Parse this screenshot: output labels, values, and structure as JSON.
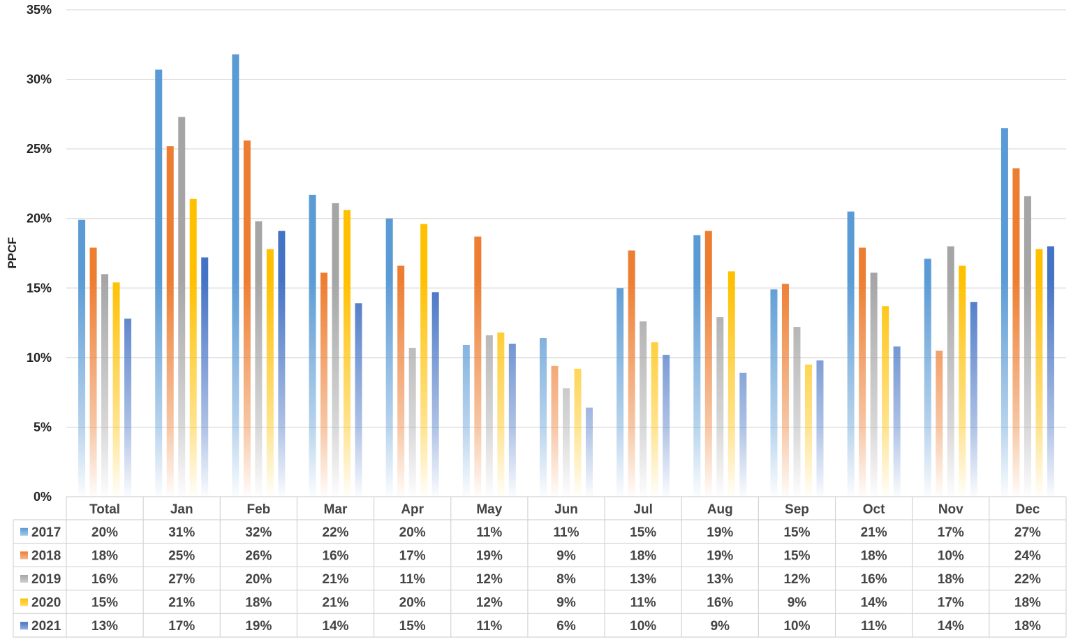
{
  "chart_data": {
    "type": "bar",
    "ylabel": "PPCF",
    "ylim": [
      0,
      35
    ],
    "y_ticks": [
      "0%",
      "5%",
      "10%",
      "15%",
      "20%",
      "25%",
      "30%",
      "35%"
    ],
    "y_tick_values": [
      0,
      5,
      10,
      15,
      20,
      25,
      30,
      35
    ],
    "grid": true,
    "legend_placement": "data-table",
    "categories": [
      "Total",
      "Jan",
      "Feb",
      "Mar",
      "Apr",
      "May",
      "Jun",
      "Jul",
      "Aug",
      "Sep",
      "Oct",
      "Nov",
      "Dec"
    ],
    "series": [
      {
        "name": "2017",
        "color": "#5b9bd5",
        "values": [
          19.9,
          30.7,
          31.8,
          21.7,
          20.0,
          10.9,
          11.4,
          15.0,
          18.8,
          14.9,
          20.5,
          17.1,
          26.5
        ],
        "labels": [
          "20%",
          "31%",
          "32%",
          "22%",
          "20%",
          "11%",
          "11%",
          "15%",
          "19%",
          "15%",
          "21%",
          "17%",
          "27%"
        ]
      },
      {
        "name": "2018",
        "color": "#ed7d31",
        "values": [
          17.9,
          25.2,
          25.6,
          16.1,
          16.6,
          18.7,
          9.4,
          17.7,
          19.1,
          15.3,
          17.9,
          10.5,
          23.6
        ],
        "labels": [
          "18%",
          "25%",
          "26%",
          "16%",
          "17%",
          "19%",
          "9%",
          "18%",
          "19%",
          "15%",
          "18%",
          "10%",
          "24%"
        ]
      },
      {
        "name": "2019",
        "color": "#a5a5a5",
        "values": [
          16.0,
          27.3,
          19.8,
          21.1,
          10.7,
          11.6,
          7.8,
          12.6,
          12.9,
          12.2,
          16.1,
          18.0,
          21.6
        ],
        "labels": [
          "16%",
          "27%",
          "20%",
          "21%",
          "11%",
          "12%",
          "8%",
          "13%",
          "13%",
          "12%",
          "16%",
          "18%",
          "22%"
        ]
      },
      {
        "name": "2020",
        "color": "#ffc000",
        "values": [
          15.4,
          21.4,
          17.8,
          20.6,
          19.6,
          11.8,
          9.2,
          11.1,
          16.2,
          9.5,
          13.7,
          16.6,
          17.8
        ],
        "labels": [
          "15%",
          "21%",
          "18%",
          "21%",
          "20%",
          "12%",
          "9%",
          "11%",
          "16%",
          "9%",
          "14%",
          "17%",
          "18%"
        ]
      },
      {
        "name": "2021",
        "color": "#4472c4",
        "values": [
          12.8,
          17.2,
          19.1,
          13.9,
          14.7,
          11.0,
          6.4,
          10.2,
          8.9,
          9.8,
          10.8,
          14.0,
          18.0
        ],
        "labels": [
          "13%",
          "17%",
          "19%",
          "14%",
          "15%",
          "11%",
          "6%",
          "10%",
          "9%",
          "10%",
          "11%",
          "14%",
          "18%"
        ]
      }
    ]
  }
}
